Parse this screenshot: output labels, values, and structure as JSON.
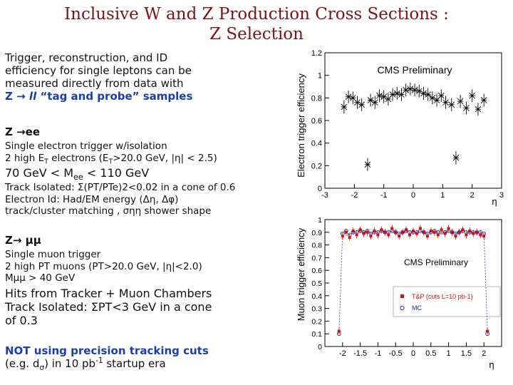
{
  "title": {
    "line1": "Inclusive W and Z Production Cross Sections :",
    "line2": "Z Selection"
  },
  "intro": {
    "line1": "Trigger, reconstruction, and ID",
    "line2": "efficiency for single leptons can be",
    "line3": "measured directly from data with",
    "line4_a": "Z",
    "line4_arrow": " →",
    "line4_ll": "ll",
    "line4_b": " “tag and probe” samples"
  },
  "zee": {
    "heading": "Z →ee",
    "l1": "Single electron trigger w/isolation",
    "l2_a": "2 high E",
    "l2_T": "T",
    "l2_b": " electrons (E",
    "l2_T2": "T",
    "l2_c": ">20.0 GeV, |η| < 2.5)",
    "l3_a": "70 GeV  < M",
    "l3_sub": "ee",
    "l3_b": " < 110 GeV",
    "l4": "Track Isolated:  Σ(PT/PTe)2<0.02 in a cone of 0.6",
    "l5": "Electron Id: Had/EM energy  (Δη, Δφ)",
    "l6": "track/cluster matching , σηη shower shape"
  },
  "zmumu": {
    "heading": "Z→ μμ",
    "l1": "Single muon trigger",
    "l2": "2 high PT muons (PT>20.0 GeV, |η|<2.0)",
    "l3": "Mμμ > 40 GeV",
    "l4": "Hits from Tracker + Muon Chambers",
    "l5": "Track Isolated: ΣPT<3 GeV in a cone",
    "l6": "of 0.3"
  },
  "note": {
    "line1": "NOT using precision tracking cuts",
    "line2_a": "(e.g. d",
    "line2_sub": "σ",
    "line2_b": ") in 10 pb",
    "line2_sup": "-1",
    "line2_c": " startup era"
  },
  "chart_data": [
    {
      "type": "scatter",
      "title": "CMS Preliminary",
      "xlabel": "η",
      "ylabel": "Electron trigger efficiency",
      "xlim": [
        -3,
        3
      ],
      "ylim": [
        0,
        1.2
      ],
      "yticks": [
        "0",
        "0.2",
        "0.4",
        "0.6",
        "0.8",
        "1",
        "1.2"
      ],
      "xticks": [
        "-3",
        "-2",
        "-1",
        "0",
        "1",
        "2",
        "3"
      ],
      "x": [
        -2.35,
        -2.2,
        -2.05,
        -1.9,
        -1.75,
        -1.55,
        -1.45,
        -1.3,
        -1.15,
        -1.0,
        -0.85,
        -0.7,
        -0.55,
        -0.4,
        -0.25,
        -0.1,
        0.05,
        0.2,
        0.35,
        0.5,
        0.65,
        0.8,
        0.95,
        1.1,
        1.3,
        1.45,
        1.6,
        1.8,
        2.0,
        2.2,
        2.4
      ],
      "y": [
        0.72,
        0.81,
        0.8,
        0.76,
        0.74,
        0.21,
        0.78,
        0.76,
        0.82,
        0.81,
        0.79,
        0.83,
        0.84,
        0.83,
        0.87,
        0.88,
        0.87,
        0.86,
        0.84,
        0.83,
        0.8,
        0.78,
        0.82,
        0.76,
        0.74,
        0.27,
        0.77,
        0.71,
        0.82,
        0.7,
        0.78
      ]
    },
    {
      "type": "scatter",
      "title": "CMS Preliminary",
      "xlabel": "η",
      "ylabel": "Muon trigger efficiency",
      "xlim": [
        -2.5,
        2.5
      ],
      "ylim": [
        0,
        1
      ],
      "yticks": [
        "0",
        "0.1",
        "0.2",
        "0.3",
        "0.4",
        "0.5",
        "0.6",
        "0.7",
        "0.8",
        "0.9",
        "1"
      ],
      "xticks": [
        "-2",
        "-1.5",
        "-1",
        "-0.5",
        "0",
        "0.5",
        "1",
        "1.5",
        "2"
      ],
      "legend": [
        "T&P (cuts L=10 pb-1)",
        "MC"
      ],
      "series": [
        {
          "name": "T&P (cuts L=10 pb-1)",
          "color": "#cc1111",
          "x": [
            -2.1,
            -2.0,
            -1.9,
            -1.8,
            -1.7,
            -1.6,
            -1.5,
            -1.4,
            -1.3,
            -1.2,
            -1.1,
            -1.0,
            -0.9,
            -0.8,
            -0.7,
            -0.6,
            -0.5,
            -0.4,
            -0.3,
            -0.2,
            -0.1,
            0.0,
            0.1,
            0.2,
            0.3,
            0.4,
            0.5,
            0.6,
            0.7,
            0.8,
            0.9,
            1.0,
            1.1,
            1.2,
            1.3,
            1.4,
            1.5,
            1.6,
            1.7,
            1.8,
            1.9,
            2.0,
            2.1
          ],
          "y": [
            0.12,
            0.87,
            0.9,
            0.86,
            0.91,
            0.88,
            0.92,
            0.89,
            0.9,
            0.87,
            0.91,
            0.88,
            0.92,
            0.9,
            0.88,
            0.93,
            0.9,
            0.87,
            0.9,
            0.92,
            0.88,
            0.91,
            0.89,
            0.93,
            0.9,
            0.87,
            0.91,
            0.9,
            0.88,
            0.92,
            0.89,
            0.93,
            0.9,
            0.87,
            0.9,
            0.92,
            0.88,
            0.91,
            0.89,
            0.9,
            0.88,
            0.87,
            0.12
          ]
        },
        {
          "name": "MC",
          "color": "#2233aa",
          "x": [
            -2.1,
            -2.0,
            -1.9,
            -1.8,
            -1.7,
            -1.6,
            -1.5,
            -1.4,
            -1.3,
            -1.2,
            -1.1,
            -1.0,
            -0.9,
            -0.8,
            -0.7,
            -0.6,
            -0.5,
            -0.4,
            -0.3,
            -0.2,
            -0.1,
            0.0,
            0.1,
            0.2,
            0.3,
            0.4,
            0.5,
            0.6,
            0.7,
            0.8,
            0.9,
            1.0,
            1.1,
            1.2,
            1.3,
            1.4,
            1.5,
            1.6,
            1.7,
            1.8,
            1.9,
            2.0,
            2.1
          ],
          "y": [
            0.1,
            0.89,
            0.91,
            0.88,
            0.9,
            0.9,
            0.91,
            0.9,
            0.91,
            0.89,
            0.9,
            0.9,
            0.91,
            0.9,
            0.9,
            0.91,
            0.9,
            0.89,
            0.9,
            0.91,
            0.9,
            0.9,
            0.9,
            0.91,
            0.9,
            0.89,
            0.9,
            0.91,
            0.9,
            0.9,
            0.9,
            0.91,
            0.9,
            0.89,
            0.9,
            0.91,
            0.9,
            0.9,
            0.9,
            0.9,
            0.9,
            0.89,
            0.1
          ]
        }
      ]
    }
  ]
}
